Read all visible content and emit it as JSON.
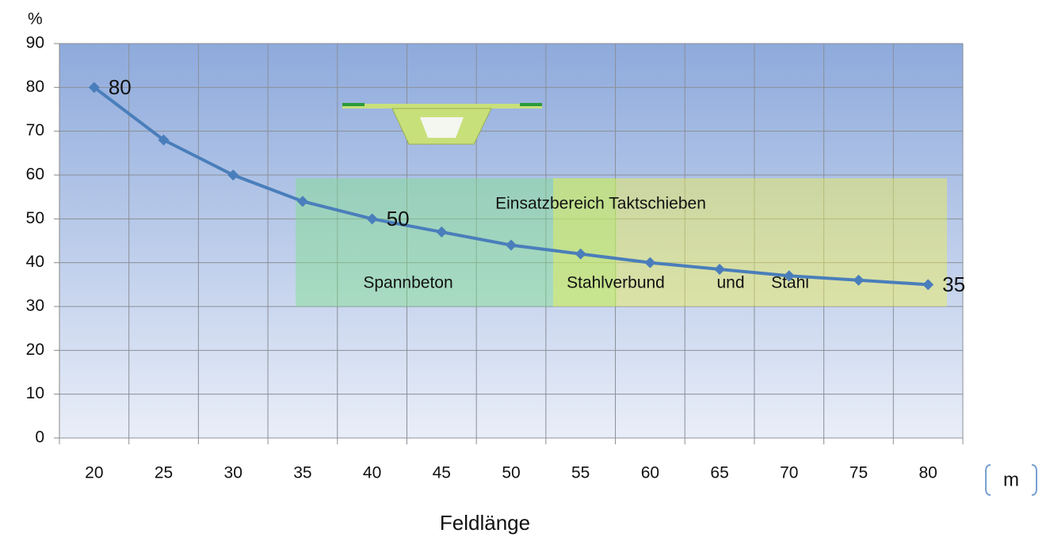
{
  "chart_data": {
    "type": "line",
    "y_axis_label": "%",
    "x_axis_label": "Feldlänge",
    "x_unit": "m",
    "categories": [
      "20",
      "25",
      "30",
      "35",
      "40",
      "45",
      "50",
      "55",
      "60",
      "65",
      "70",
      "75",
      "80"
    ],
    "series": [
      {
        "color": "#4a7ebb",
        "values": [
          80,
          68,
          60,
          54,
          50,
          47,
          44,
          42,
          40,
          38.5,
          37,
          36,
          35
        ],
        "value_labels": [
          "80",
          null,
          null,
          null,
          "50",
          null,
          null,
          null,
          null,
          null,
          null,
          null,
          "35"
        ]
      }
    ],
    "ylim": [
      0,
      90
    ],
    "yticks": [
      0,
      10,
      20,
      30,
      40,
      50,
      60,
      70,
      80,
      90
    ],
    "grid": true,
    "annotations": {
      "range_title": "Einsatzbereich Taktschieben",
      "concrete": "Spannbeton",
      "composite": "Stahlverbund",
      "and": "und",
      "steel": "Stahl"
    }
  }
}
